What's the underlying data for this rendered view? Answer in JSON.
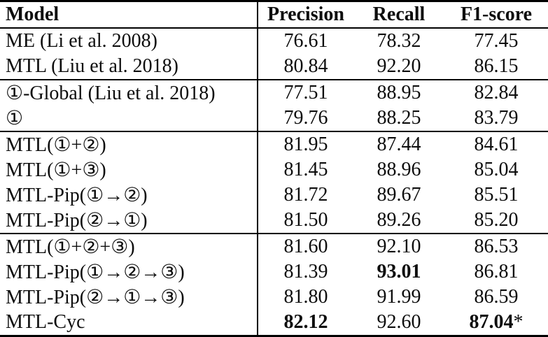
{
  "table": {
    "header": {
      "model": "Model",
      "precision": "Precision",
      "recall": "Recall",
      "f1": "F1-score"
    },
    "groups": [
      {
        "rows": [
          {
            "model": "ME (Li et al. 2008)",
            "cells": [
              {
                "text": "76.61",
                "bold": false
              },
              {
                "text": "78.32",
                "bold": false
              },
              {
                "text": "77.45",
                "bold": false
              }
            ]
          },
          {
            "model": "MTL (Liu et al. 2018)",
            "cells": [
              {
                "text": "80.84",
                "bold": false
              },
              {
                "text": "92.20",
                "bold": false
              },
              {
                "text": "86.15",
                "bold": false
              }
            ]
          }
        ]
      },
      {
        "rows": [
          {
            "model": "①-Global (Liu et al. 2018)",
            "cells": [
              {
                "text": "77.51",
                "bold": false
              },
              {
                "text": "88.95",
                "bold": false
              },
              {
                "text": "82.84",
                "bold": false
              }
            ]
          },
          {
            "model": "①",
            "cells": [
              {
                "text": "79.76",
                "bold": false
              },
              {
                "text": "88.25",
                "bold": false
              },
              {
                "text": "83.79",
                "bold": false
              }
            ]
          }
        ]
      },
      {
        "rows": [
          {
            "model": "MTL(①+②)",
            "cells": [
              {
                "text": "81.95",
                "bold": false
              },
              {
                "text": "87.44",
                "bold": false
              },
              {
                "text": "84.61",
                "bold": false
              }
            ]
          },
          {
            "model": "MTL(①+③)",
            "cells": [
              {
                "text": "81.45",
                "bold": false
              },
              {
                "text": "88.96",
                "bold": false
              },
              {
                "text": "85.04",
                "bold": false
              }
            ]
          },
          {
            "model": "MTL-Pip(①→②)",
            "cells": [
              {
                "text": "81.72",
                "bold": false
              },
              {
                "text": "89.67",
                "bold": false
              },
              {
                "text": "85.51",
                "bold": false
              }
            ]
          },
          {
            "model": "MTL-Pip(②→①)",
            "cells": [
              {
                "text": "81.50",
                "bold": false
              },
              {
                "text": "89.26",
                "bold": false
              },
              {
                "text": "85.20",
                "bold": false
              }
            ]
          }
        ]
      },
      {
        "rows": [
          {
            "model": "MTL(①+②+③)",
            "cells": [
              {
                "text": "81.60",
                "bold": false
              },
              {
                "text": "92.10",
                "bold": false
              },
              {
                "text": "86.53",
                "bold": false
              }
            ]
          },
          {
            "model": "MTL-Pip(①→②→③)",
            "cells": [
              {
                "text": "81.39",
                "bold": false
              },
              {
                "text": "93.01",
                "bold": true
              },
              {
                "text": "86.81",
                "bold": false
              }
            ]
          },
          {
            "model": "MTL-Pip(②→①→③)",
            "cells": [
              {
                "text": "81.80",
                "bold": false
              },
              {
                "text": "91.99",
                "bold": false
              },
              {
                "text": "86.59",
                "bold": false
              }
            ]
          },
          {
            "model": "MTL-Cyc",
            "cells": [
              {
                "text": "82.12",
                "bold": true
              },
              {
                "text": "92.60",
                "bold": false
              },
              {
                "text": "87.04",
                "bold": true,
                "suffix": "*"
              }
            ]
          }
        ]
      }
    ]
  }
}
